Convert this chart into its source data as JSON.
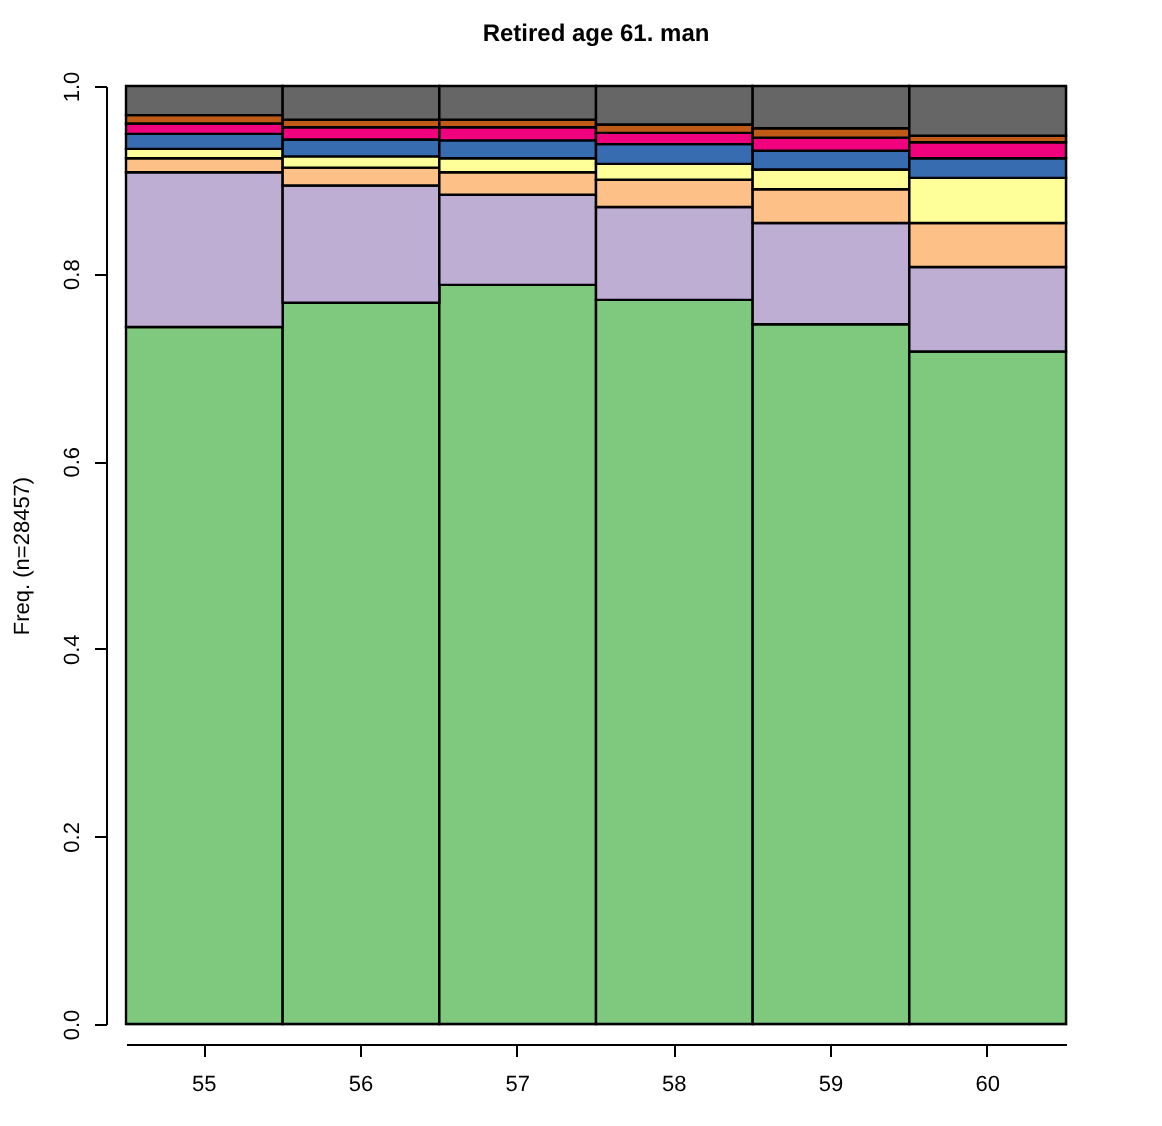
{
  "chart_data": {
    "type": "bar",
    "stacked": true,
    "title": "Retired age 61. man",
    "ylabel": "Freq. (n=28457)",
    "categories": [
      "55",
      "56",
      "57",
      "58",
      "59",
      "60"
    ],
    "ylim": [
      0,
      1
    ],
    "yticks": [
      {
        "value": 0,
        "label": "0.0"
      },
      {
        "value": 0.2,
        "label": "0.2"
      },
      {
        "value": 0.4,
        "label": "0.4"
      },
      {
        "value": 0.6,
        "label": "0.6"
      },
      {
        "value": 0.8,
        "label": "0.8"
      },
      {
        "value": 1,
        "label": "1.0"
      }
    ],
    "legend": false,
    "series": [
      {
        "color": "#7fc97f",
        "values": [
          0.743,
          0.769,
          0.788,
          0.772,
          0.746,
          0.717
        ]
      },
      {
        "color": "#beaed4",
        "values": [
          0.165,
          0.125,
          0.096,
          0.099,
          0.108,
          0.09
        ]
      },
      {
        "color": "#fdc086",
        "values": [
          0.015,
          0.019,
          0.024,
          0.029,
          0.036,
          0.047
        ]
      },
      {
        "color": "#ffff99",
        "values": [
          0.01,
          0.012,
          0.015,
          0.017,
          0.021,
          0.048
        ]
      },
      {
        "color": "#386cb0",
        "values": [
          0.016,
          0.018,
          0.019,
          0.021,
          0.02,
          0.021
        ]
      },
      {
        "color": "#f0027f",
        "values": [
          0.011,
          0.013,
          0.014,
          0.012,
          0.014,
          0.017
        ]
      },
      {
        "color": "#bf5b17",
        "values": [
          0.009,
          0.008,
          0.008,
          0.009,
          0.01,
          0.007
        ]
      },
      {
        "color": "#666666",
        "values": [
          0.031,
          0.036,
          0.036,
          0.041,
          0.045,
          0.053
        ]
      }
    ]
  }
}
